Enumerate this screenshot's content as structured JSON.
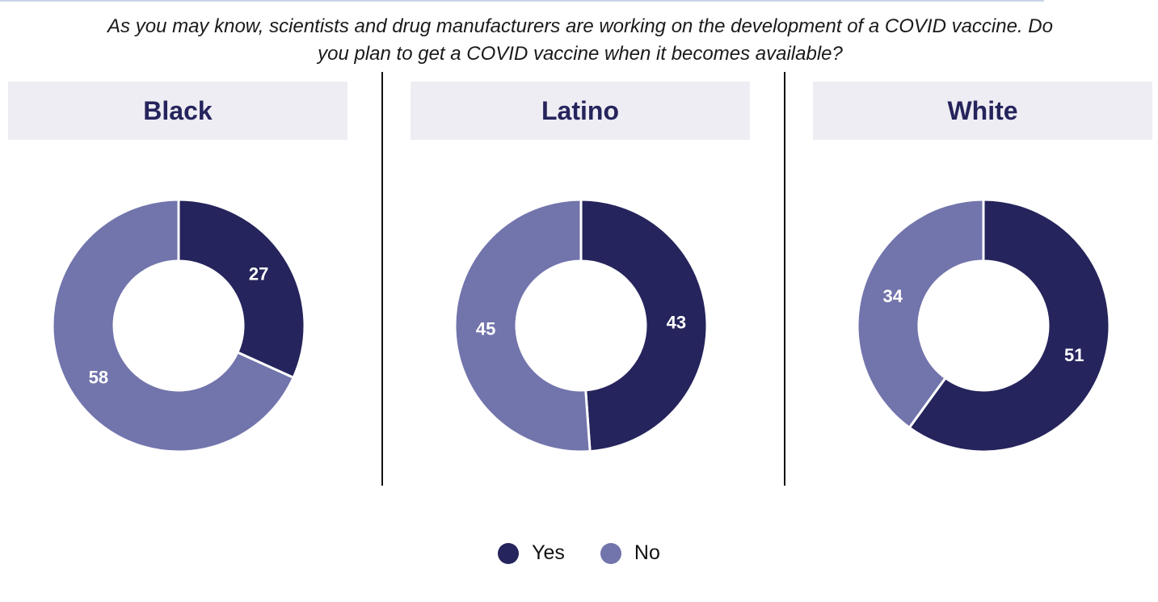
{
  "question": "As you may know, scientists and drug manufacturers are working on the development of a COVID vaccine. Do you plan to get a COVID vaccine when it becomes available?",
  "colors": {
    "yes": "#25245c",
    "no": "#7274ac",
    "header_bg": "#eeedf3",
    "title": "#25245c"
  },
  "legend": {
    "yes": "Yes",
    "no": "No"
  },
  "chart_data": [
    {
      "type": "pie",
      "variant": "donut",
      "title": "Black",
      "categories": [
        "Yes",
        "No"
      ],
      "values": [
        27,
        58
      ]
    },
    {
      "type": "pie",
      "variant": "donut",
      "title": "Latino",
      "categories": [
        "Yes",
        "No"
      ],
      "values": [
        43,
        45
      ]
    },
    {
      "type": "pie",
      "variant": "donut",
      "title": "White",
      "categories": [
        "Yes",
        "No"
      ],
      "values": [
        51,
        34
      ]
    }
  ]
}
